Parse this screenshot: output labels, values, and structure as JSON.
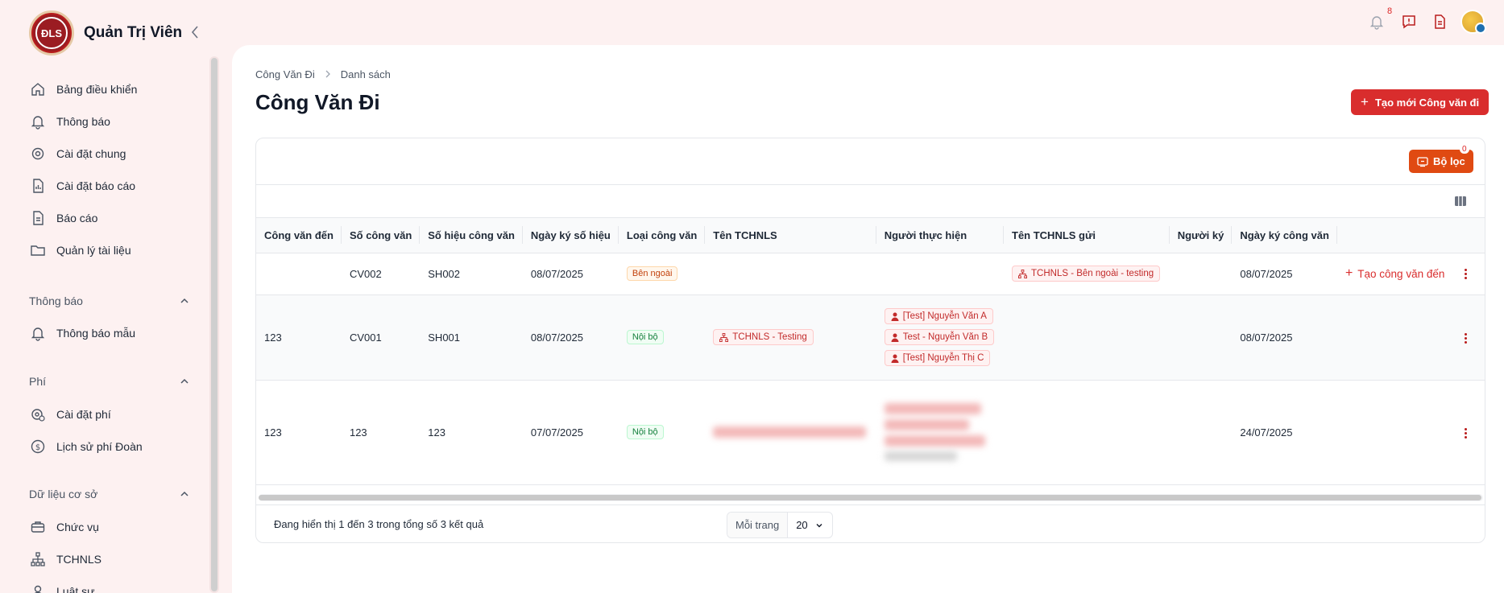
{
  "brand": {
    "name": "Quản Trị Viên",
    "logo_text": "ĐLS"
  },
  "sidebar": {
    "main_items": [
      {
        "label": "Bảng điều khiển",
        "icon": "home-icon"
      },
      {
        "label": "Thông báo",
        "icon": "bell-icon"
      },
      {
        "label": "Cài đặt chung",
        "icon": "settings-icon"
      },
      {
        "label": "Cài đặt báo cáo",
        "icon": "report-settings-icon"
      },
      {
        "label": "Báo cáo",
        "icon": "document-icon"
      },
      {
        "label": "Quản lý tài liệu",
        "icon": "folder-icon"
      }
    ],
    "sections": [
      {
        "title": "Thông báo",
        "items": [
          {
            "label": "Thông báo mẫu",
            "icon": "bell-icon"
          }
        ]
      },
      {
        "title": "Phí",
        "items": [
          {
            "label": "Cài đặt phí",
            "icon": "gear-dollar-icon"
          },
          {
            "label": "Lịch sử phí Đoàn",
            "icon": "dollar-circle-icon"
          }
        ]
      },
      {
        "title": "Dữ liệu cơ sở",
        "items": [
          {
            "label": "Chức vụ",
            "icon": "briefcase-icon"
          },
          {
            "label": "TCHNLS",
            "icon": "org-chart-icon"
          },
          {
            "label": "Luật sư",
            "icon": "user-icon"
          }
        ]
      }
    ]
  },
  "topbar": {
    "notification_count": "8"
  },
  "page": {
    "breadcrumb": [
      "Công Văn Đi",
      "Danh sách"
    ],
    "title": "Công Văn Đi",
    "create_button": "Tạo mới Công văn đi",
    "filter_button": "Bộ lọc",
    "filter_count": "0"
  },
  "table": {
    "columns": [
      "Công văn đến",
      "Số công văn",
      "Số hiệu công văn",
      "Ngày ký số hiệu",
      "Loại công văn",
      "Tên TCHNLS",
      "Người thực hiện",
      "Tên TCHNLS gửi",
      "Người ký",
      "Ngày ký công văn"
    ],
    "rows": [
      {
        "incoming": "",
        "number": "CV002",
        "code": "SH002",
        "sign_date": "08/07/2025",
        "type": "Bên ngoài",
        "org": "",
        "people": [],
        "sender_org": "TCHNLS - Bên ngoài - testing",
        "signer": "",
        "doc_date": "08/07/2025",
        "action": "Tạo công văn đến"
      },
      {
        "incoming": "123",
        "number": "CV001",
        "code": "SH001",
        "sign_date": "08/07/2025",
        "type": "Nội bộ",
        "org": "TCHNLS - Testing",
        "people": [
          "[Test] Nguyễn Văn A",
          "Test - Nguyễn Văn B",
          "[Test] Nguyễn Thị C"
        ],
        "sender_org": "",
        "signer": "",
        "doc_date": "08/07/2025",
        "action": ""
      },
      {
        "incoming": "123",
        "number": "123",
        "code": "123",
        "sign_date": "07/07/2025",
        "type": "Nội bộ",
        "org": "",
        "people": [],
        "sender_org": "",
        "signer": "",
        "doc_date": "24/07/2025",
        "action": ""
      }
    ]
  },
  "footer": {
    "result_text": "Đang hiển thị 1 đến 3 trong tổng số 3 kết quả",
    "per_page_label": "Mỗi trang",
    "per_page_value": "20"
  },
  "colors": {
    "accent": "#d92d2d",
    "filter": "#e04a12",
    "sidebar_bg": "#fdf1f1"
  }
}
